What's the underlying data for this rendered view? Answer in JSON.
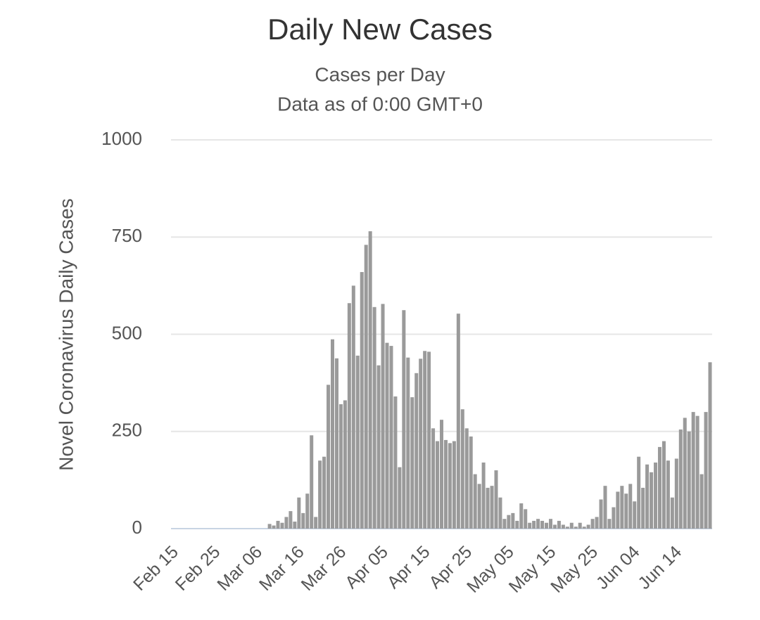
{
  "chart_data": {
    "type": "bar",
    "title": "Daily New Cases",
    "subtitle": [
      "Cases per Day",
      "Data as of 0:00 GMT+0"
    ],
    "y_label": "Novel Coronavirus Daily Cases",
    "categories": [
      "Feb 15",
      null,
      null,
      null,
      null,
      null,
      null,
      null,
      null,
      null,
      "Feb 25",
      null,
      null,
      null,
      null,
      null,
      null,
      null,
      null,
      null,
      "Mar 06",
      null,
      null,
      null,
      null,
      null,
      null,
      null,
      null,
      null,
      "Mar 16",
      null,
      null,
      null,
      null,
      null,
      null,
      null,
      null,
      null,
      "Mar 26",
      null,
      null,
      null,
      null,
      null,
      null,
      null,
      null,
      null,
      "Apr 05",
      null,
      null,
      null,
      null,
      null,
      null,
      null,
      null,
      null,
      "Apr 15",
      null,
      null,
      null,
      null,
      null,
      null,
      null,
      null,
      null,
      "Apr 25",
      null,
      null,
      null,
      null,
      null,
      null,
      null,
      null,
      null,
      "May 05",
      null,
      null,
      null,
      null,
      null,
      null,
      null,
      null,
      null,
      "May 15",
      null,
      null,
      null,
      null,
      null,
      null,
      null,
      null,
      null,
      "May 25",
      null,
      null,
      null,
      null,
      null,
      null,
      null,
      null,
      null,
      "Jun 04",
      null,
      null,
      null,
      null,
      null,
      null,
      null,
      null,
      null,
      "Jun 14",
      null,
      null,
      null,
      null,
      null,
      null,
      null,
      null
    ],
    "values": [
      0,
      0,
      0,
      0,
      0,
      0,
      0,
      0,
      0,
      0,
      0,
      0,
      0,
      0,
      0,
      0,
      0,
      0,
      0,
      0,
      0,
      0,
      0,
      12,
      8,
      20,
      15,
      30,
      45,
      18,
      80,
      40,
      90,
      240,
      30,
      175,
      185,
      370,
      487,
      438,
      320,
      330,
      580,
      625,
      445,
      660,
      730,
      765,
      570,
      420,
      578,
      478,
      470,
      340,
      158,
      562,
      440,
      338,
      400,
      437,
      457,
      455,
      258,
      225,
      280,
      228,
      220,
      225,
      553,
      307,
      258,
      237,
      140,
      115,
      170,
      105,
      110,
      150,
      80,
      25,
      35,
      40,
      20,
      65,
      50,
      15,
      20,
      25,
      20,
      15,
      25,
      10,
      20,
      10,
      5,
      15,
      5,
      15,
      5,
      10,
      25,
      30,
      75,
      110,
      25,
      55,
      95,
      110,
      90,
      115,
      70,
      185,
      105,
      165,
      145,
      170,
      210,
      225,
      175,
      80,
      180,
      255,
      285,
      250,
      300,
      290,
      140,
      300,
      428
    ],
    "color": "#9a9a9a",
    "ylim": [
      0,
      1000
    ],
    "yticks": [
      0,
      250,
      500,
      750,
      1000
    ],
    "grid": true
  }
}
